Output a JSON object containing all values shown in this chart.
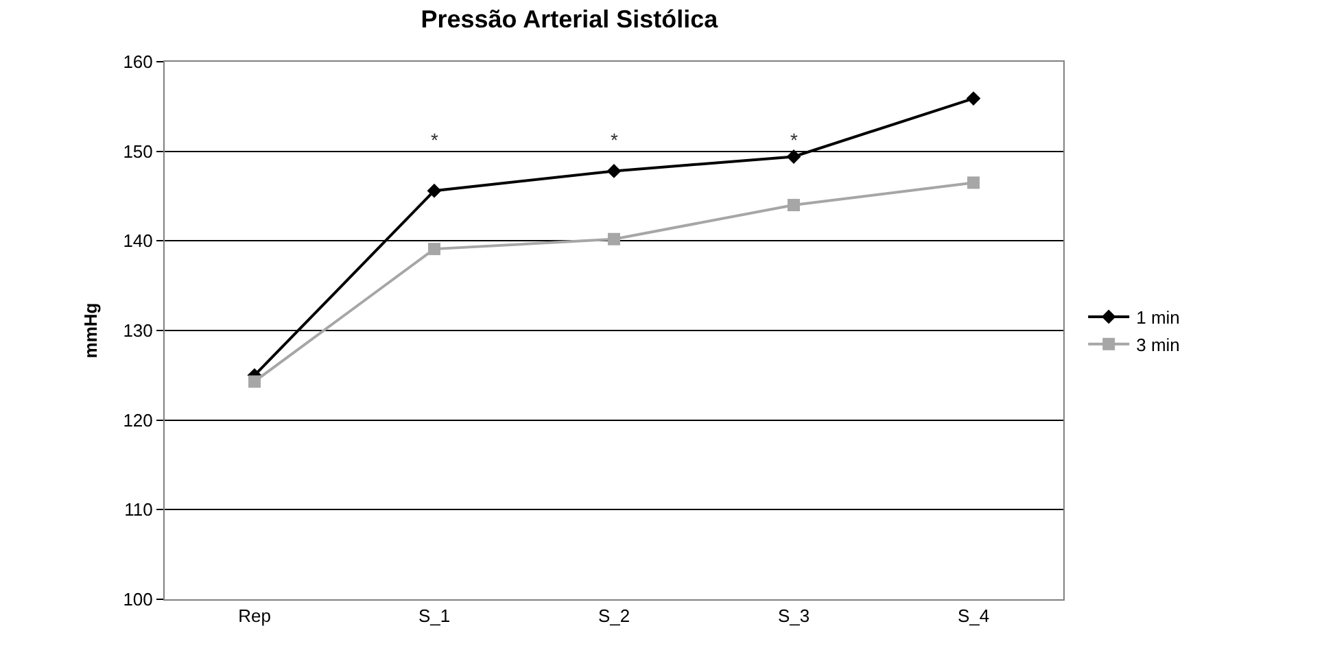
{
  "chart_data": {
    "type": "line",
    "title": "Pressão Arterial Sistólica",
    "ylabel": "mmHg",
    "categories": [
      "Rep",
      "S_1",
      "S_2",
      "S_3",
      "S_4"
    ],
    "series": [
      {
        "name": "1 min",
        "color": "#000000",
        "marker": "diamond",
        "values": [
          125,
          145.6,
          147.8,
          149.4,
          155.9
        ]
      },
      {
        "name": "3 min",
        "color": "#a6a6a6",
        "marker": "square",
        "values": [
          124.3,
          139.1,
          140.2,
          144.0,
          146.5
        ]
      }
    ],
    "annotations": [
      "*",
      "*",
      "*"
    ],
    "ylim": [
      100,
      160
    ],
    "yticks": [
      100,
      110,
      120,
      130,
      140,
      150,
      160
    ],
    "grid": "y",
    "legend": "right"
  }
}
